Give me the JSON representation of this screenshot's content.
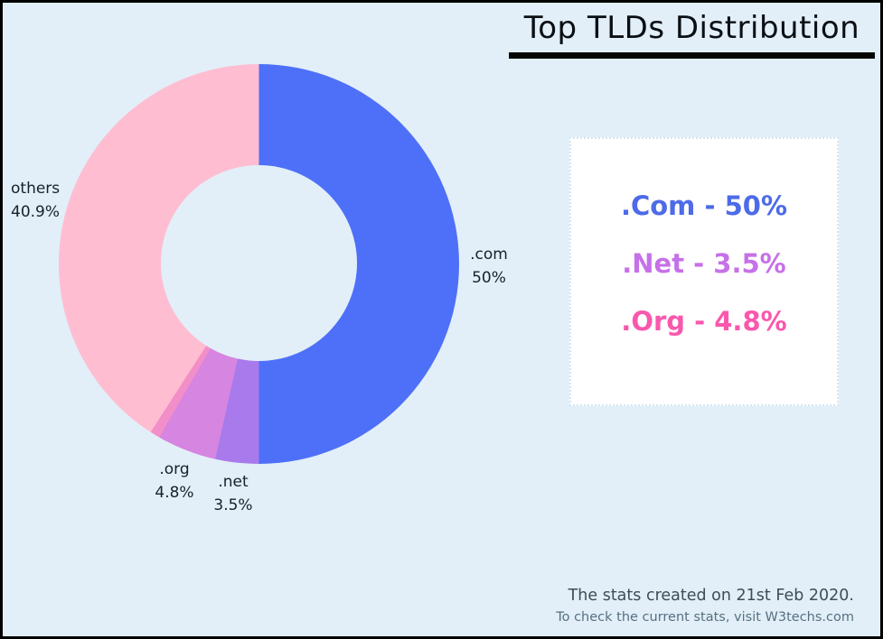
{
  "title": "Top TLDs Distribution",
  "colors": {
    "background": "#E2EFF8",
    "frame_border": "#000000",
    "title_text": "#0A0F14",
    "title_underline": "#050505",
    "slice_label_text": "#16212B",
    "legend_card_background": "#FFFFFF"
  },
  "chart_data": {
    "type": "pie",
    "subtype": "donut",
    "title": "Top TLDs Distribution",
    "categories": [
      ".com",
      ".net",
      ".org",
      "unlabeled-remainder",
      "others"
    ],
    "values": [
      50,
      3.5,
      4.8,
      0.8,
      40.9
    ],
    "unit": "%",
    "colors": [
      "#4E70F8",
      "#A87AEB",
      "#D685E0",
      "#F28FC8",
      "#FFBDD2"
    ],
    "start_angle_deg": 0,
    "direction": "clockwise",
    "donut_hole_ratio": 0.49,
    "slice_labels": [
      ".com 50%",
      ".net 3.5%",
      ".org 4.8%",
      "",
      "others 40.9%"
    ],
    "legend_position": "right"
  },
  "slice_callouts": {
    "com": {
      "name": ".com",
      "pct": "50%"
    },
    "net": {
      "name": ".net",
      "pct": "3.5%"
    },
    "org": {
      "name": ".org",
      "pct": "4.8%"
    },
    "others": {
      "name": "others",
      "pct": "40.9%"
    }
  },
  "legend": {
    "items": [
      {
        "label": ".Com - 50%",
        "color": "#4D6BE8"
      },
      {
        "label": ".Net - 3.5%",
        "color": "#C671E8"
      },
      {
        "label": ".Org - 4.8%",
        "color": "#F958AD"
      }
    ]
  },
  "footer": {
    "line1": "The stats created on 21st Feb 2020.",
    "line2": "To check the current stats, visit W3techs.com"
  }
}
